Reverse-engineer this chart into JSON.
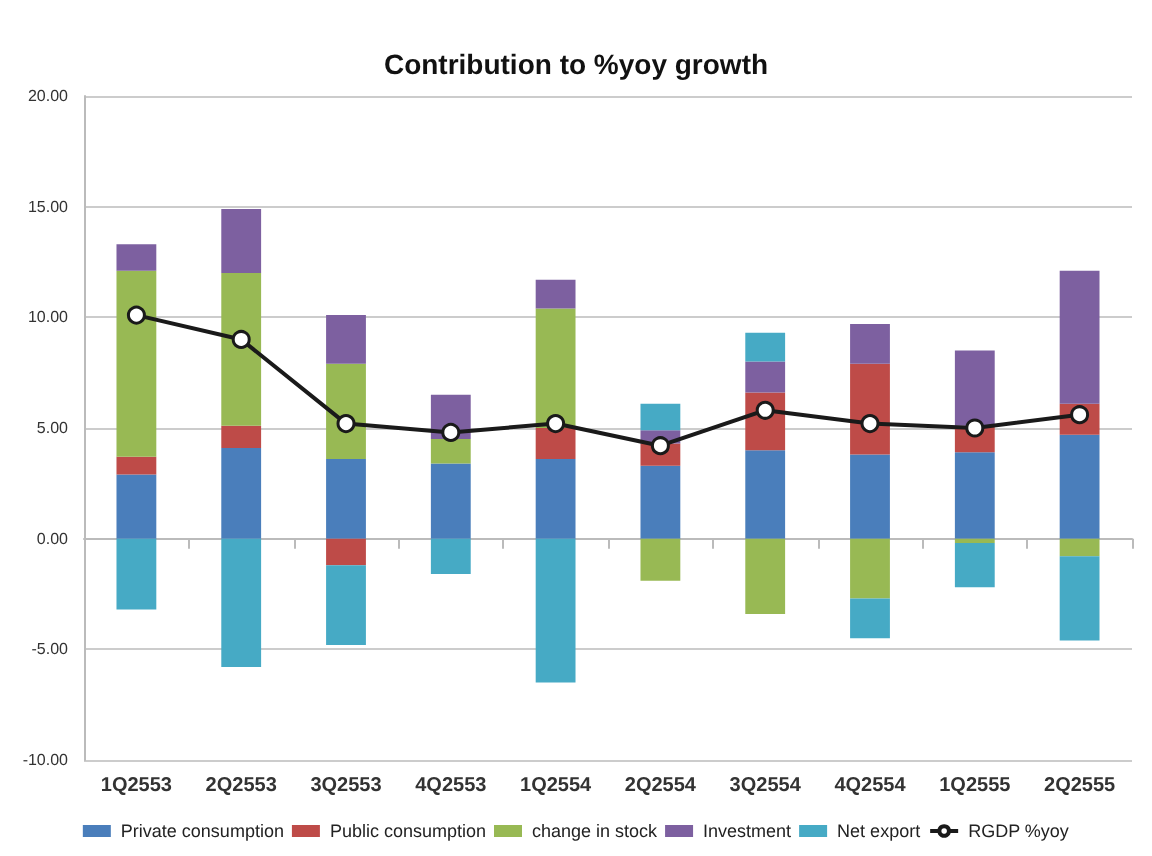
{
  "chart_data": {
    "type": "bar",
    "stacked": true,
    "title": "Contribution to %yoy growth",
    "categories": [
      "1Q2553",
      "2Q2553",
      "3Q2553",
      "4Q2553",
      "1Q2554",
      "2Q2554",
      "3Q2554",
      "4Q2554",
      "1Q2555",
      "2Q2555"
    ],
    "series": [
      {
        "name": "Private consumption",
        "color": "#4a7ebb",
        "values": [
          2.9,
          4.1,
          3.6,
          3.4,
          3.6,
          3.3,
          4.0,
          3.8,
          3.9,
          4.7
        ]
      },
      {
        "name": "Public consumption",
        "color": "#be4b48",
        "values": [
          0.8,
          1.0,
          -1.2,
          null,
          1.4,
          1.0,
          2.6,
          4.1,
          1.2,
          1.4
        ]
      },
      {
        "name": "change in stock",
        "color": "#98b954",
        "values": [
          8.4,
          6.9,
          4.3,
          1.1,
          5.4,
          -1.9,
          -3.4,
          -2.7,
          -0.2,
          -0.8
        ]
      },
      {
        "name": "Investment",
        "color": "#7d60a0",
        "values": [
          1.2,
          2.9,
          2.2,
          2.0,
          1.3,
          0.6,
          1.4,
          1.8,
          3.4,
          6.0
        ]
      },
      {
        "name": "Net export",
        "color": "#46aac5",
        "values": [
          -3.2,
          -5.8,
          -3.6,
          -1.6,
          -6.5,
          1.2,
          1.3,
          -1.8,
          -2.0,
          -3.8
        ]
      },
      {
        "name": "RGDP %yoy",
        "type": "line",
        "color": "#1a1a1a",
        "marker": "circle",
        "values": [
          10.1,
          9.0,
          5.2,
          4.8,
          5.2,
          4.2,
          5.8,
          5.2,
          5.0,
          5.6
        ]
      }
    ],
    "ylim": [
      -10,
      20
    ],
    "yticks": [
      {
        "value": -10,
        "label": "-10.00"
      },
      {
        "value": -5,
        "label": "-5.00"
      },
      {
        "value": 0,
        "label": "0.00"
      },
      {
        "value": 5,
        "label": "5.00"
      },
      {
        "value": 10,
        "label": "10.00"
      },
      {
        "value": 15,
        "label": "15.00"
      },
      {
        "value": 20,
        "label": "20.00"
      }
    ],
    "grid": "y",
    "legend": "bottom"
  }
}
